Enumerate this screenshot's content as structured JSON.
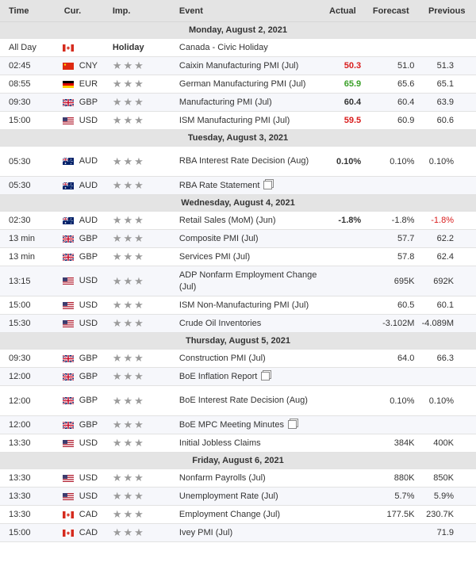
{
  "header": {
    "time": "Time",
    "currency": "Cur.",
    "importance": "Imp.",
    "event": "Event",
    "actual": "Actual",
    "forecast": "Forecast",
    "previous": "Previous"
  },
  "colors": {
    "better": "#3aa028",
    "worse": "#d91c1c",
    "header_bg": "#e4e4e4",
    "star": "#9b9b9b"
  },
  "icons": {
    "star": "star-icon",
    "document": "document-icon"
  },
  "days": [
    {
      "label": "Monday, August 2, 2021",
      "events": [
        {
          "time": "All Day",
          "flag": "CA",
          "currency": "",
          "importance": "Holiday",
          "event": "Canada - Civic Holiday",
          "actual": "",
          "actual_style": "",
          "forecast": "",
          "previous": "",
          "previous_style": ""
        },
        {
          "time": "02:45",
          "flag": "CN",
          "currency": "CNY",
          "importance": "",
          "event": "Caixin Manufacturing PMI (Jul)",
          "actual": "50.3",
          "actual_style": "red",
          "forecast": "51.0",
          "previous": "51.3",
          "previous_style": ""
        },
        {
          "time": "08:55",
          "flag": "DE",
          "currency": "EUR",
          "importance": "",
          "event": "German Manufacturing PMI (Jul)",
          "actual": "65.9",
          "actual_style": "green",
          "forecast": "65.6",
          "previous": "65.1",
          "previous_style": ""
        },
        {
          "time": "09:30",
          "flag": "GB",
          "currency": "GBP",
          "importance": "",
          "event": "Manufacturing PMI (Jul)",
          "actual": "60.4",
          "actual_style": "bold",
          "forecast": "60.4",
          "previous": "63.9",
          "previous_style": ""
        },
        {
          "time": "15:00",
          "flag": "US",
          "currency": "USD",
          "importance": "",
          "event": "ISM Manufacturing PMI (Jul)",
          "actual": "59.5",
          "actual_style": "red",
          "forecast": "60.9",
          "previous": "60.6",
          "previous_style": ""
        }
      ]
    },
    {
      "label": "Tuesday, August 3, 2021",
      "events": [
        {
          "time": "05:30",
          "flag": "AU",
          "currency": "AUD",
          "importance": "",
          "event": "RBA Interest Rate Decision (Aug)",
          "actual": "0.10%",
          "actual_style": "bold",
          "forecast": "0.10%",
          "previous": "0.10%",
          "previous_style": ""
        },
        {
          "time": "05:30",
          "flag": "AU",
          "currency": "AUD",
          "importance": "",
          "event": "RBA Rate Statement",
          "doc": true,
          "actual": "",
          "actual_style": "",
          "forecast": "",
          "previous": "",
          "previous_style": ""
        }
      ]
    },
    {
      "label": "Wednesday, August 4, 2021",
      "events": [
        {
          "time": "02:30",
          "flag": "AU",
          "currency": "AUD",
          "importance": "",
          "event": "Retail Sales (MoM) (Jun)",
          "actual": "-1.8%",
          "actual_style": "bold",
          "forecast": "-1.8%",
          "previous": "-1.8%",
          "previous_style": "red-plain"
        },
        {
          "time": "13 min",
          "flag": "GB",
          "currency": "GBP",
          "importance": "",
          "event": "Composite PMI (Jul)",
          "actual": "",
          "actual_style": "",
          "forecast": "57.7",
          "previous": "62.2",
          "previous_style": ""
        },
        {
          "time": "13 min",
          "flag": "GB",
          "currency": "GBP",
          "importance": "",
          "event": "Services PMI (Jul)",
          "actual": "",
          "actual_style": "",
          "forecast": "57.8",
          "previous": "62.4",
          "previous_style": ""
        },
        {
          "time": "13:15",
          "flag": "US",
          "currency": "USD",
          "importance": "",
          "event": "ADP Nonfarm Employment Change (Jul)",
          "actual": "",
          "actual_style": "",
          "forecast": "695K",
          "previous": "692K",
          "previous_style": ""
        },
        {
          "time": "15:00",
          "flag": "US",
          "currency": "USD",
          "importance": "",
          "event": "ISM Non-Manufacturing PMI (Jul)",
          "actual": "",
          "actual_style": "",
          "forecast": "60.5",
          "previous": "60.1",
          "previous_style": ""
        },
        {
          "time": "15:30",
          "flag": "US",
          "currency": "USD",
          "importance": "",
          "event": "Crude Oil Inventories",
          "actual": "",
          "actual_style": "",
          "forecast": "-3.102M",
          "previous": "-4.089M",
          "previous_style": ""
        }
      ]
    },
    {
      "label": "Thursday, August 5, 2021",
      "events": [
        {
          "time": "09:30",
          "flag": "GB",
          "currency": "GBP",
          "importance": "",
          "event": "Construction PMI (Jul)",
          "actual": "",
          "actual_style": "",
          "forecast": "64.0",
          "previous": "66.3",
          "previous_style": ""
        },
        {
          "time": "12:00",
          "flag": "GB",
          "currency": "GBP",
          "importance": "",
          "event": "BoE Inflation Report",
          "doc": true,
          "actual": "",
          "actual_style": "",
          "forecast": "",
          "previous": "",
          "previous_style": ""
        },
        {
          "time": "12:00",
          "flag": "GB",
          "currency": "GBP",
          "importance": "",
          "event": "BoE Interest Rate Decision (Aug)",
          "actual": "",
          "actual_style": "",
          "forecast": "0.10%",
          "previous": "0.10%",
          "previous_style": ""
        },
        {
          "time": "12:00",
          "flag": "GB",
          "currency": "GBP",
          "importance": "",
          "event": "BoE MPC Meeting Minutes",
          "doc": true,
          "actual": "",
          "actual_style": "",
          "forecast": "",
          "previous": "",
          "previous_style": ""
        },
        {
          "time": "13:30",
          "flag": "US",
          "currency": "USD",
          "importance": "",
          "event": "Initial Jobless Claims",
          "actual": "",
          "actual_style": "",
          "forecast": "384K",
          "previous": "400K",
          "previous_style": ""
        }
      ]
    },
    {
      "label": "Friday, August 6, 2021",
      "events": [
        {
          "time": "13:30",
          "flag": "US",
          "currency": "USD",
          "importance": "",
          "event": "Nonfarm Payrolls (Jul)",
          "actual": "",
          "actual_style": "",
          "forecast": "880K",
          "previous": "850K",
          "previous_style": ""
        },
        {
          "time": "13:30",
          "flag": "US",
          "currency": "USD",
          "importance": "",
          "event": "Unemployment Rate (Jul)",
          "actual": "",
          "actual_style": "",
          "forecast": "5.7%",
          "previous": "5.9%",
          "previous_style": ""
        },
        {
          "time": "13:30",
          "flag": "CA",
          "currency": "CAD",
          "importance": "",
          "event": "Employment Change (Jul)",
          "actual": "",
          "actual_style": "",
          "forecast": "177.5K",
          "previous": "230.7K",
          "previous_style": ""
        },
        {
          "time": "15:00",
          "flag": "CA",
          "currency": "CAD",
          "importance": "",
          "event": "Ivey PMI (Jul)",
          "actual": "",
          "actual_style": "",
          "forecast": "",
          "previous": "71.9",
          "previous_style": ""
        }
      ]
    }
  ]
}
